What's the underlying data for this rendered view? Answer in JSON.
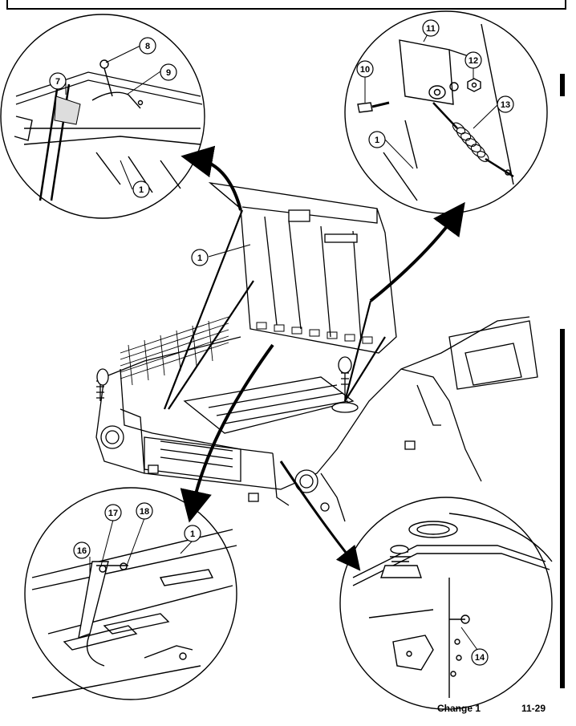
{
  "footer": {
    "change": "Change 1",
    "page_number": "11-29"
  },
  "callouts": {
    "c1_top_left": "1",
    "c7": "7",
    "c8": "8",
    "c9": "9",
    "c10": "10",
    "c11": "11",
    "c12": "12",
    "c13": "13",
    "c1_top_right": "1",
    "c1_main": "1",
    "c16": "16",
    "c17": "17",
    "c18": "18",
    "c1_bottom_left": "1",
    "c14": "14"
  }
}
